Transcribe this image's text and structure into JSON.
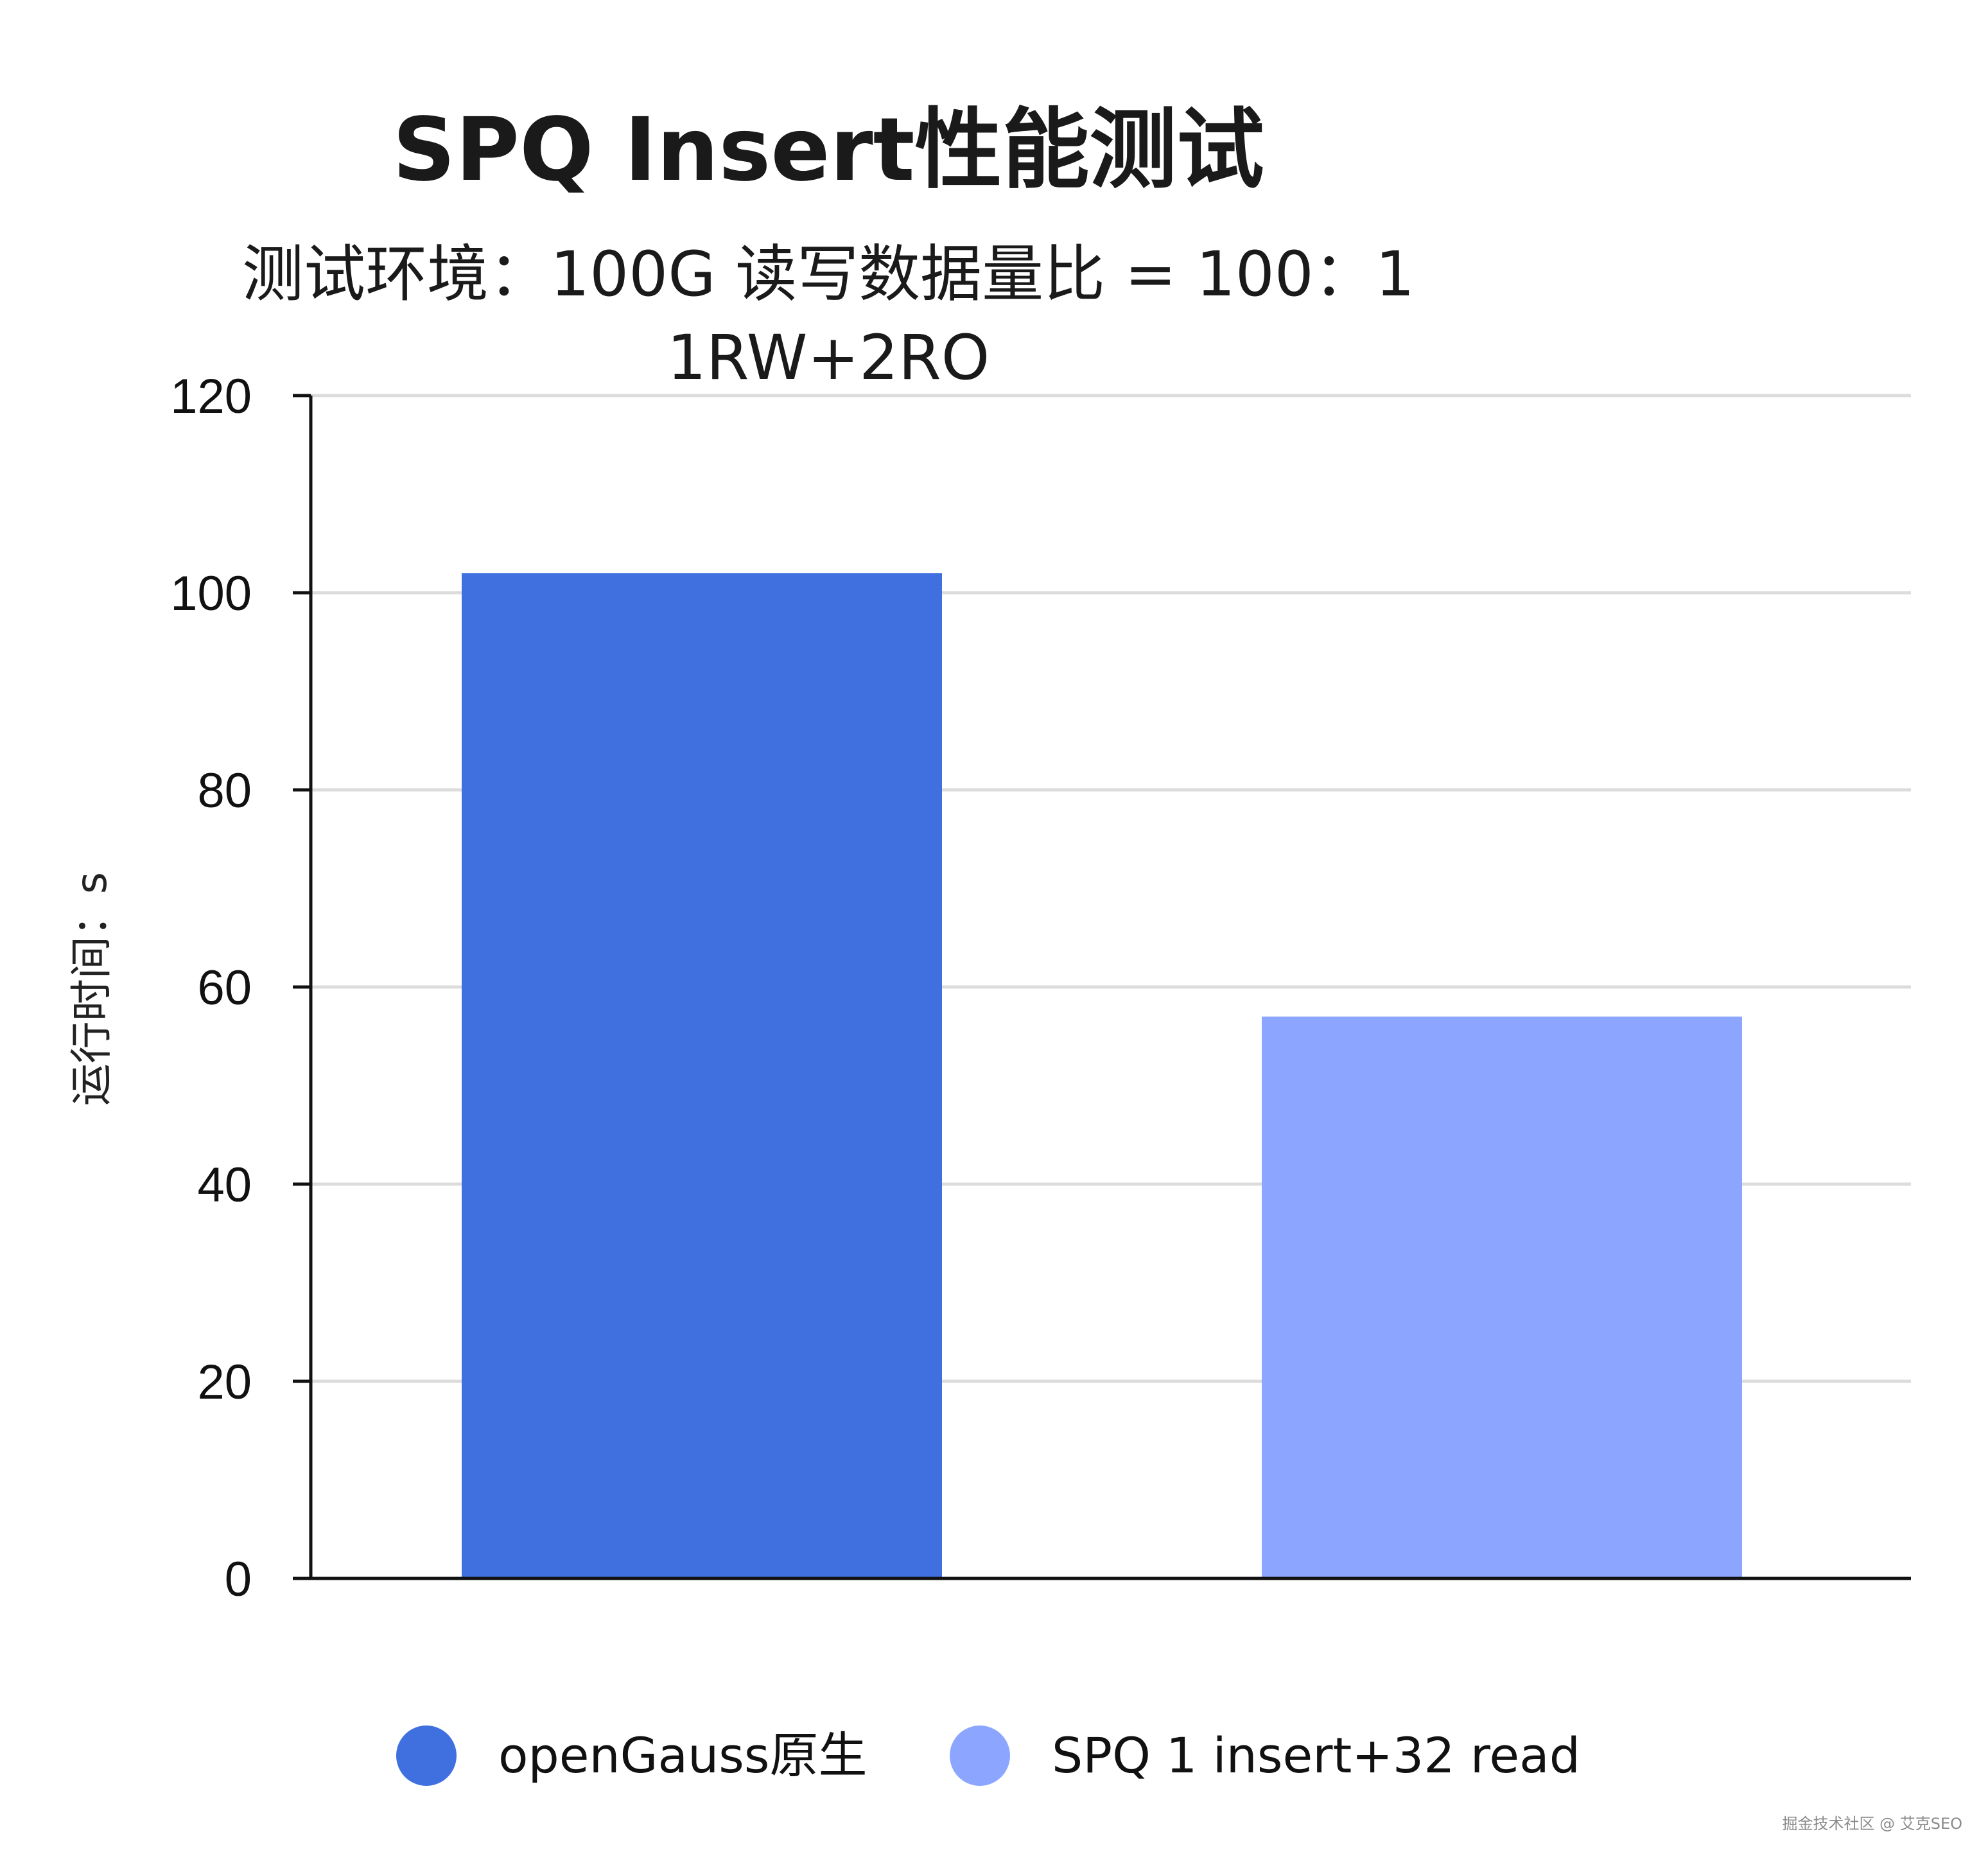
{
  "chart_data": {
    "type": "bar",
    "title": "SPQ Insert性能测试",
    "subtitle_lines": [
      "测试环境：100G 读写数据量比 = 100：1",
      "1RW+2RO"
    ],
    "ylabel": "运行时间：s",
    "xlabel": "",
    "ylim": [
      0,
      120
    ],
    "yticks": [
      0,
      20,
      40,
      60,
      80,
      100,
      120
    ],
    "grid": true,
    "legend_position": "bottom",
    "series": [
      {
        "name": "openGauss原生",
        "value": 102,
        "color": "#4070e0"
      },
      {
        "name": "SPQ 1 insert+32 read",
        "value": 57,
        "color": "#8ca6ff"
      }
    ]
  },
  "watermark": "掘金技术社区 @ 艾克SEO"
}
